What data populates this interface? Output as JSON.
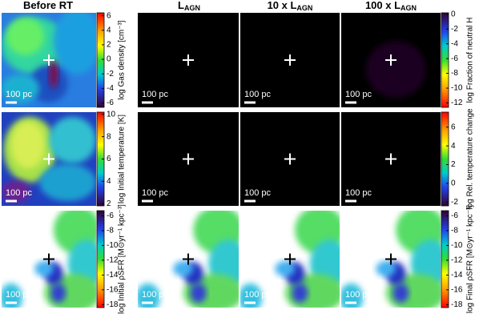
{
  "columns": [
    {
      "text": "Before RT"
    },
    {
      "text": "L",
      "sub": "AGN"
    },
    {
      "text": "10 x L",
      "sub": "AGN"
    },
    {
      "text": "100 x L",
      "sub": "AGN"
    }
  ],
  "scale_bars": [
    "100 pc",
    "100 pc",
    "100 pc",
    "100 pc",
    "100 pc",
    "100 pc",
    "100 pc",
    "100 pc",
    "100 pc",
    "100 pc",
    "100 pc",
    "100 pc"
  ],
  "colorbars": [
    {
      "label": "log Gas density [cm⁻³]",
      "lim": [
        -6.6,
        6.4
      ],
      "ticks": [
        6,
        4,
        2,
        0,
        -2,
        -4,
        -6
      ]
    },
    {
      "label": "log Initial temperature [K]",
      "lim": [
        1.8,
        10.2
      ],
      "ticks": [
        10,
        8,
        6,
        4,
        2
      ]
    },
    {
      "label": "log Initial ρSFR [M⊙yr⁻¹ kpc⁻³]",
      "lim": [
        -18.4,
        -5.3
      ],
      "ticks": [
        -6,
        -8,
        -10,
        -12,
        -14,
        -16,
        -18
      ]
    },
    {
      "label": "log Fraction of neutral H",
      "lim": [
        -12.6,
        0.2
      ],
      "ticks": [
        0,
        -2,
        -4,
        -6,
        -8,
        -10,
        -12
      ]
    },
    {
      "label": "log Rel. temperature change",
      "lim": [
        -2.4,
        7.6
      ],
      "ticks": [
        6,
        4,
        2,
        0,
        -2
      ]
    },
    {
      "label": "log Final ρSFR [M⊙yr⁻¹ kpc⁻³]",
      "lim": [
        -18.4,
        -5.3
      ],
      "ticks": [
        -6,
        -8,
        -10,
        -12,
        -14,
        -16,
        -18
      ]
    }
  ]
}
